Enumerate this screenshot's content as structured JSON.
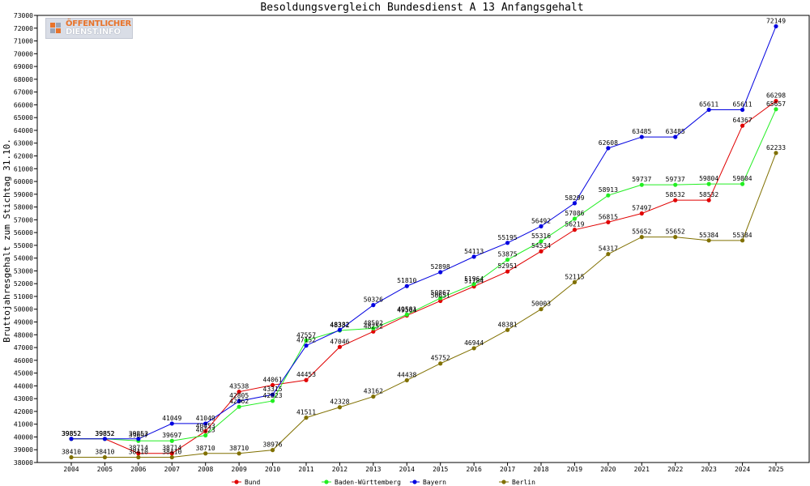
{
  "chart_data": {
    "type": "line",
    "title": "Besoldungsvergleich Bundesdienst A 13 Anfangsgehalt",
    "ylabel": "Bruttojahresgehalt zum Stichtag 31.10.",
    "xlabel": "",
    "ylim": [
      38000,
      73000
    ],
    "ystep": 1000,
    "grid": false,
    "legend_position": "bottom",
    "categories": [
      "2004",
      "2005",
      "2006",
      "2007",
      "2008",
      "2009",
      "2010",
      "2011",
      "2012",
      "2013",
      "2014",
      "2015",
      "2016",
      "2017",
      "2018",
      "2019",
      "2020",
      "2021",
      "2022",
      "2023",
      "2024",
      "2025"
    ],
    "series": [
      {
        "name": "Bund",
        "color": "#e00000",
        "values": [
          39852,
          39852,
          38714,
          38714,
          40453,
          43538,
          44061,
          44453,
          47046,
          48252,
          49504,
          50651,
          51784,
          52951,
          54534,
          56219,
          56815,
          57497,
          58532,
          58532,
          64367,
          66298
        ]
      },
      {
        "name": "Baden-Württemberg",
        "color": "#22ee22",
        "values": [
          39852,
          39852,
          39697,
          39697,
          40123,
          42362,
          42823,
          47557,
          48332,
          48502,
          49581,
          50867,
          51964,
          53875,
          55316,
          57086,
          58913,
          59737,
          59737,
          59804,
          59804,
          65657
        ]
      },
      {
        "name": "Bayern",
        "color": "#0000e0",
        "values": [
          39852,
          39852,
          39852,
          41049,
          41049,
          42805,
          43315,
          47152,
          48382,
          50326,
          51810,
          52898,
          54113,
          55195,
          56492,
          58299,
          62608,
          63485,
          63485,
          65611,
          65611,
          72149
        ]
      },
      {
        "name": "Berlin",
        "color": "#807000",
        "values": [
          38410,
          38410,
          38410,
          38410,
          38710,
          38710,
          38976,
          41511,
          42328,
          43162,
          44438,
          45752,
          46944,
          48381,
          50003,
          52115,
          54317,
          55652,
          55652,
          55384,
          55384,
          62233
        ]
      }
    ]
  },
  "logo": {
    "line1": "ÖFFENTLICHER",
    "line2": "DIENST.INFO"
  }
}
